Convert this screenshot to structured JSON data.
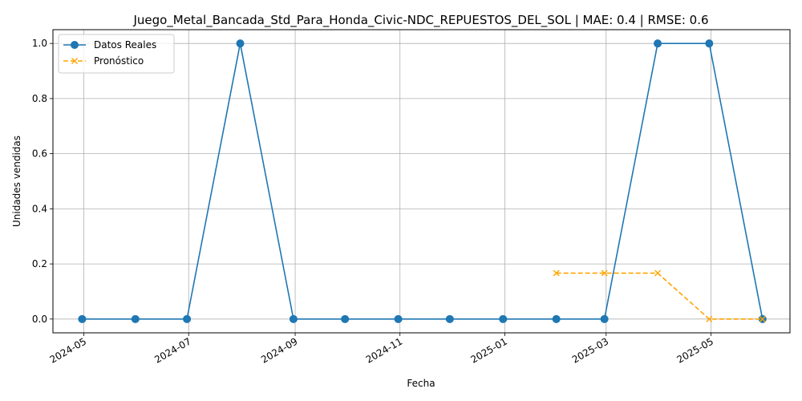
{
  "chart_data": {
    "type": "line",
    "title": "Juego_Metal_Bancada_Std_Para_Honda_Civic-NDC_REPUESTOS_DEL_SOL | MAE: 0.4 | RMSE: 0.6",
    "xlabel": "Fecha",
    "ylabel": "Unidades vendidas",
    "x_axis_type": "date",
    "xlim": [
      "2024-04-13",
      "2025-06-16"
    ],
    "ylim": [
      -0.05,
      1.05
    ],
    "x_ticks": [
      "2024-05",
      "2024-07",
      "2024-09",
      "2024-11",
      "2025-01",
      "2025-03",
      "2025-05"
    ],
    "x_tick_dates": [
      "2024-05-01",
      "2024-07-01",
      "2024-09-01",
      "2024-11-01",
      "2025-01-01",
      "2025-03-01",
      "2025-05-01"
    ],
    "y_ticks": [
      "0.0",
      "0.2",
      "0.4",
      "0.6",
      "0.8",
      "1.0"
    ],
    "y_tick_values": [
      0.0,
      0.2,
      0.4,
      0.6,
      0.8,
      1.0
    ],
    "grid": true,
    "legend_position": "top-left",
    "series": [
      {
        "name": "Datos Reales",
        "color": "#1f77b4",
        "marker": "circle",
        "style": "solid",
        "x": [
          "2024-04-30",
          "2024-05-31",
          "2024-06-30",
          "2024-07-31",
          "2024-08-31",
          "2024-09-30",
          "2024-10-31",
          "2024-11-30",
          "2024-12-31",
          "2025-01-31",
          "2025-02-28",
          "2025-03-31",
          "2025-04-30",
          "2025-05-31"
        ],
        "values": [
          0,
          0,
          0,
          1,
          0,
          0,
          0,
          0,
          0,
          0,
          0,
          1,
          1,
          0
        ]
      },
      {
        "name": "Pronóstico",
        "color": "#ffa500",
        "marker": "x",
        "style": "dashed",
        "x": [
          "2025-01-31",
          "2025-02-28",
          "2025-03-31",
          "2025-04-30",
          "2025-05-31"
        ],
        "values": [
          0.1667,
          0.1667,
          0.1667,
          0.0,
          0.0
        ]
      }
    ]
  }
}
